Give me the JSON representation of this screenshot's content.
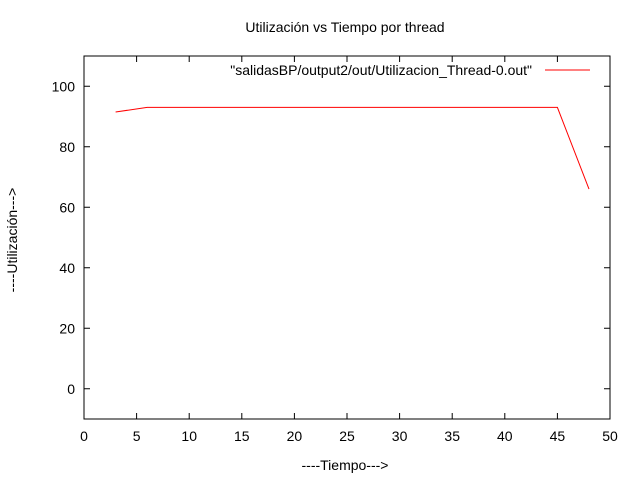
{
  "chart_data": {
    "type": "line",
    "title": "Utilización vs Tiempo por thread",
    "xlabel": "----Tiempo--->",
    "ylabel": "----Utilización--->",
    "xlim": [
      0,
      50
    ],
    "ylim": [
      -10,
      110
    ],
    "x_ticks": [
      0,
      5,
      10,
      15,
      20,
      25,
      30,
      35,
      40,
      45,
      50
    ],
    "y_ticks": [
      0,
      20,
      40,
      60,
      80,
      100
    ],
    "grid": false,
    "legend_position": "top-right",
    "series": [
      {
        "name": "\"salidasBP/output2/out/Utilizacion_Thread-0.out\"",
        "color": "#ff0000",
        "x": [
          3,
          6,
          9,
          12,
          15,
          18,
          21,
          24,
          27,
          30,
          33,
          36,
          39,
          42,
          45,
          48
        ],
        "y": [
          91.5,
          93,
          93,
          93,
          93,
          93,
          93,
          93,
          93,
          93,
          93,
          93,
          93,
          93,
          93,
          66
        ]
      }
    ]
  }
}
